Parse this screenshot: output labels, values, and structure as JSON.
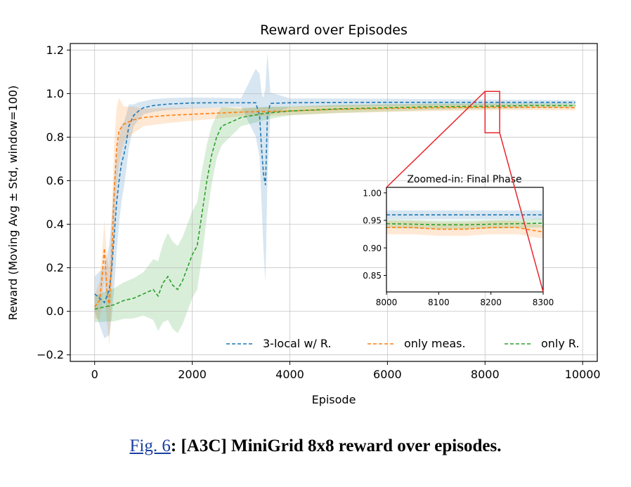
{
  "chart_data": [
    {
      "type": "line",
      "title": "Reward over Episodes",
      "xlabel": "Episode",
      "ylabel": "Reward (Moving Avg ± Std, window=100)",
      "xlim": [
        -500,
        10300
      ],
      "ylim": [
        -0.23,
        1.23
      ],
      "x_ticks": [
        "0",
        "2000",
        "4000",
        "6000",
        "8000",
        "10000"
      ],
      "y_ticks": [
        "−0.2",
        "0.0",
        "0.2",
        "0.4",
        "0.6",
        "0.8",
        "1.0",
        "1.2"
      ],
      "grid": true,
      "legend_position": "lower-right",
      "series": [
        {
          "name": "3-local w/ R.",
          "color": "#1f77b4",
          "style": "dashed",
          "points": [
            [
              0,
              0.08
            ],
            [
              100,
              0.06
            ],
            [
              200,
              0.04
            ],
            [
              300,
              0.1
            ],
            [
              350,
              0.2
            ],
            [
              400,
              0.35
            ],
            [
              450,
              0.5
            ],
            [
              500,
              0.6
            ],
            [
              550,
              0.68
            ],
            [
              600,
              0.72
            ],
            [
              650,
              0.78
            ],
            [
              700,
              0.85
            ],
            [
              800,
              0.9
            ],
            [
              900,
              0.92
            ],
            [
              1000,
              0.935
            ],
            [
              1200,
              0.945
            ],
            [
              1500,
              0.952
            ],
            [
              2000,
              0.957
            ],
            [
              2500,
              0.958
            ],
            [
              3000,
              0.958
            ],
            [
              3300,
              0.958
            ],
            [
              3380,
              0.9
            ],
            [
              3420,
              0.75
            ],
            [
              3460,
              0.63
            ],
            [
              3500,
              0.58
            ],
            [
              3540,
              0.9
            ],
            [
              3600,
              0.955
            ],
            [
              4000,
              0.958
            ],
            [
              5000,
              0.959
            ],
            [
              6000,
              0.96
            ],
            [
              7000,
              0.96
            ],
            [
              8000,
              0.96
            ],
            [
              9000,
              0.96
            ],
            [
              9850,
              0.96
            ]
          ],
          "band_halfwidth": [
            [
              0,
              0.08
            ],
            [
              400,
              0.25
            ],
            [
              600,
              0.15
            ],
            [
              800,
              0.05
            ],
            [
              1000,
              0.03
            ],
            [
              3000,
              0.02
            ],
            [
              3400,
              0.2
            ],
            [
              3500,
              0.45
            ],
            [
              3600,
              0.05
            ],
            [
              4000,
              0.02
            ],
            [
              9850,
              0.01
            ]
          ]
        },
        {
          "name": "only meas.",
          "color": "#ff7f0e",
          "style": "dashed",
          "points": [
            [
              0,
              0.02
            ],
            [
              100,
              0.05
            ],
            [
              150,
              0.15
            ],
            [
              200,
              0.29
            ],
            [
              250,
              0.1
            ],
            [
              300,
              0.02
            ],
            [
              350,
              0.25
            ],
            [
              400,
              0.55
            ],
            [
              450,
              0.75
            ],
            [
              500,
              0.83
            ],
            [
              600,
              0.86
            ],
            [
              800,
              0.88
            ],
            [
              1000,
              0.89
            ],
            [
              1500,
              0.9
            ],
            [
              2000,
              0.905
            ],
            [
              3000,
              0.915
            ],
            [
              4000,
              0.92
            ],
            [
              5000,
              0.928
            ],
            [
              6000,
              0.932
            ],
            [
              7000,
              0.935
            ],
            [
              8000,
              0.937
            ],
            [
              9000,
              0.937
            ],
            [
              9850,
              0.935
            ]
          ],
          "band_halfwidth": [
            [
              0,
              0.05
            ],
            [
              250,
              0.15
            ],
            [
              400,
              0.22
            ],
            [
              600,
              0.08
            ],
            [
              1000,
              0.04
            ],
            [
              3000,
              0.02
            ],
            [
              9850,
              0.012
            ]
          ]
        },
        {
          "name": "only R.",
          "color": "#2ca02c",
          "style": "dashed",
          "points": [
            [
              0,
              0.01
            ],
            [
              200,
              0.02
            ],
            [
              400,
              0.03
            ],
            [
              600,
              0.05
            ],
            [
              800,
              0.06
            ],
            [
              1000,
              0.08
            ],
            [
              1200,
              0.1
            ],
            [
              1300,
              0.07
            ],
            [
              1400,
              0.13
            ],
            [
              1500,
              0.16
            ],
            [
              1600,
              0.12
            ],
            [
              1700,
              0.1
            ],
            [
              1800,
              0.14
            ],
            [
              1900,
              0.2
            ],
            [
              2000,
              0.26
            ],
            [
              2100,
              0.3
            ],
            [
              2200,
              0.45
            ],
            [
              2300,
              0.6
            ],
            [
              2400,
              0.72
            ],
            [
              2500,
              0.8
            ],
            [
              2600,
              0.85
            ],
            [
              2800,
              0.87
            ],
            [
              3000,
              0.89
            ],
            [
              3500,
              0.91
            ],
            [
              4000,
              0.92
            ],
            [
              5000,
              0.93
            ],
            [
              6000,
              0.935
            ],
            [
              7000,
              0.94
            ],
            [
              8000,
              0.942
            ],
            [
              9000,
              0.945
            ],
            [
              9850,
              0.945
            ]
          ],
          "band_halfwidth": [
            [
              0,
              0.06
            ],
            [
              1000,
              0.1
            ],
            [
              1500,
              0.2
            ],
            [
              1900,
              0.2
            ],
            [
              2200,
              0.2
            ],
            [
              2500,
              0.1
            ],
            [
              3000,
              0.04
            ],
            [
              4000,
              0.02
            ],
            [
              9850,
              0.01
            ]
          ]
        }
      ],
      "zoom_region": {
        "x": [
          8000,
          8300
        ],
        "y": [
          0.82,
          1.01
        ]
      }
    },
    {
      "type": "line",
      "title": "Zoomed-in: Final Phase",
      "xlim": [
        8000,
        8300
      ],
      "ylim": [
        0.82,
        1.01
      ],
      "x_ticks": [
        "8000",
        "8100",
        "8200",
        "8300"
      ],
      "y_ticks": [
        "0.85",
        "0.90",
        "0.95",
        "1.00"
      ],
      "grid": false,
      "series": [
        {
          "color": "#1f77b4",
          "points": [
            [
              8000,
              0.96
            ],
            [
              8100,
              0.96
            ],
            [
              8200,
              0.96
            ],
            [
              8300,
              0.96
            ]
          ],
          "band_halfwidth": 0.008
        },
        {
          "color": "#ff7f0e",
          "points": [
            [
              8000,
              0.937
            ],
            [
              8050,
              0.937
            ],
            [
              8100,
              0.934
            ],
            [
              8150,
              0.934
            ],
            [
              8200,
              0.937
            ],
            [
              8250,
              0.937
            ],
            [
              8280,
              0.932
            ],
            [
              8300,
              0.929
            ]
          ],
          "band_halfwidth": 0.012
        },
        {
          "color": "#2ca02c",
          "points": [
            [
              8000,
              0.944
            ],
            [
              8050,
              0.943
            ],
            [
              8100,
              0.942
            ],
            [
              8150,
              0.942
            ],
            [
              8200,
              0.943
            ],
            [
              8250,
              0.944
            ],
            [
              8300,
              0.945
            ]
          ],
          "band_halfwidth": 0.008
        }
      ]
    }
  ],
  "caption": {
    "link": "Fig. 6",
    "text": ": [A3C] MiniGrid 8x8 reward over episodes."
  }
}
